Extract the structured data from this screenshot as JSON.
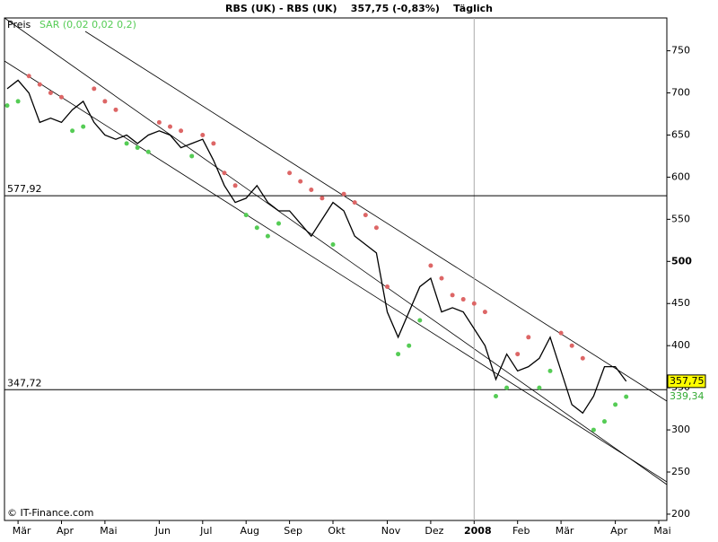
{
  "chart_data": {
    "type": "line",
    "title": "RBS (UK) - RBS (UK)    357,75 (-0,83%)    Täglich",
    "categories": [
      null,
      "Mär",
      null,
      null,
      null,
      "Apr",
      null,
      null,
      null,
      "Mai",
      null,
      null,
      null,
      null,
      "Jun",
      null,
      null,
      null,
      "Jul",
      null,
      null,
      null,
      "Aug",
      null,
      null,
      null,
      "Sep",
      null,
      null,
      null,
      "Okt",
      null,
      null,
      null,
      null,
      "Nov",
      null,
      null,
      null,
      "Dez",
      null,
      null,
      null,
      "2008",
      null,
      null,
      null,
      "Feb",
      null,
      null,
      null,
      "Mär",
      null,
      null,
      null,
      null,
      "Apr",
      null,
      null,
      null,
      "Mai"
    ],
    "series": [
      {
        "name": "Preis",
        "color": "#000000",
        "values": [
          705,
          715,
          700,
          665,
          670,
          665,
          680,
          690,
          665,
          650,
          645,
          650,
          640,
          650,
          655,
          650,
          635,
          640,
          645,
          620,
          590,
          570,
          575,
          590,
          570,
          560,
          560,
          545,
          530,
          550,
          570,
          560,
          530,
          520,
          510,
          440,
          410,
          440,
          470,
          480,
          440,
          445,
          440,
          420,
          400,
          360,
          390,
          370,
          375,
          385,
          410,
          370,
          330,
          320,
          340,
          375,
          375,
          357.75,
          null,
          null,
          null
        ]
      },
      {
        "name": "SAR (0,02 0,02 0,2)",
        "color": "#55cc55",
        "above_color": "#dd6666",
        "values": [
          685,
          690,
          720,
          710,
          700,
          695,
          655,
          660,
          705,
          690,
          680,
          640,
          635,
          630,
          665,
          660,
          655,
          625,
          650,
          640,
          605,
          590,
          555,
          540,
          530,
          545,
          605,
          595,
          585,
          575,
          520,
          580,
          570,
          555,
          540,
          470,
          390,
          400,
          430,
          495,
          480,
          460,
          455,
          450,
          440,
          340,
          350,
          390,
          410,
          350,
          370,
          415,
          400,
          385,
          300,
          310,
          330,
          339.34,
          null,
          null,
          null
        ]
      }
    ],
    "ylim": [
      192.5,
      773
    ],
    "yticks": [
      200,
      250,
      300,
      350,
      400,
      450,
      500,
      550,
      600,
      650,
      700,
      750
    ],
    "bold_tick": 500,
    "hlines": [
      {
        "value": 577.92,
        "label": "577,92"
      },
      {
        "value": 347.72,
        "label": "347,72"
      }
    ],
    "last_labels": [
      {
        "value": 357.75,
        "label": "357,75"
      },
      {
        "value": 339.34,
        "label": "339,34"
      }
    ],
    "vline_category": "2008",
    "footer": "© IT-Finance.com"
  }
}
